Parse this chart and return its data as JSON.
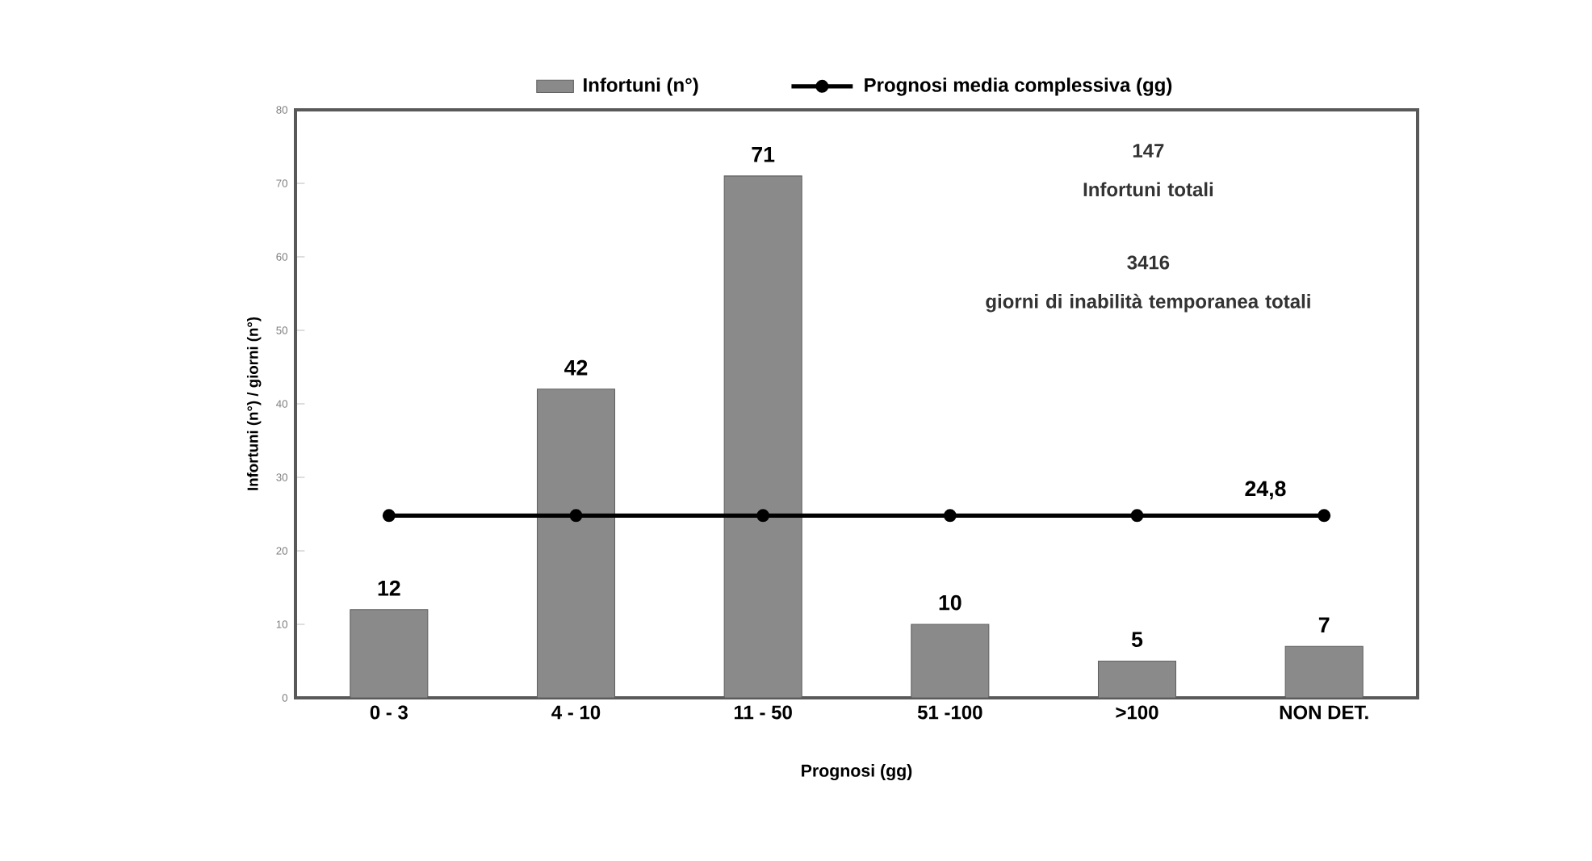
{
  "chart_data": {
    "type": "bar",
    "xlabel": "Prognosi (gg)",
    "ylabel": "Infortuni (n°) / giorni (n°)",
    "categories": [
      "0 - 3",
      "4 - 10",
      "11 - 50",
      "51 -100",
      ">100",
      "NON DET."
    ],
    "series": [
      {
        "name": "Infortuni (n°)",
        "color": "#8a8a8a",
        "values": [
          12,
          42,
          71,
          10,
          5,
          7
        ],
        "value_labels": [
          "12",
          "42",
          "71",
          "10",
          "5",
          "7"
        ]
      },
      {
        "name": "Prognosi media complessiva (gg)",
        "type": "line",
        "color": "#000000",
        "marker": "circle",
        "line_style": "solid",
        "values": [
          24.8,
          24.8,
          24.8,
          24.8,
          24.8,
          24.8
        ],
        "value_labels": [
          null,
          null,
          null,
          null,
          null,
          "24,8"
        ]
      }
    ],
    "ylim": [
      0,
      80
    ],
    "yticks": [
      0,
      10,
      20,
      30,
      40,
      50,
      60,
      70,
      80
    ],
    "grid": false,
    "legend": "top",
    "annotations": [
      "147",
      "Infortuni totali",
      "3416",
      "giorni di inabilità temporanea totali"
    ]
  }
}
